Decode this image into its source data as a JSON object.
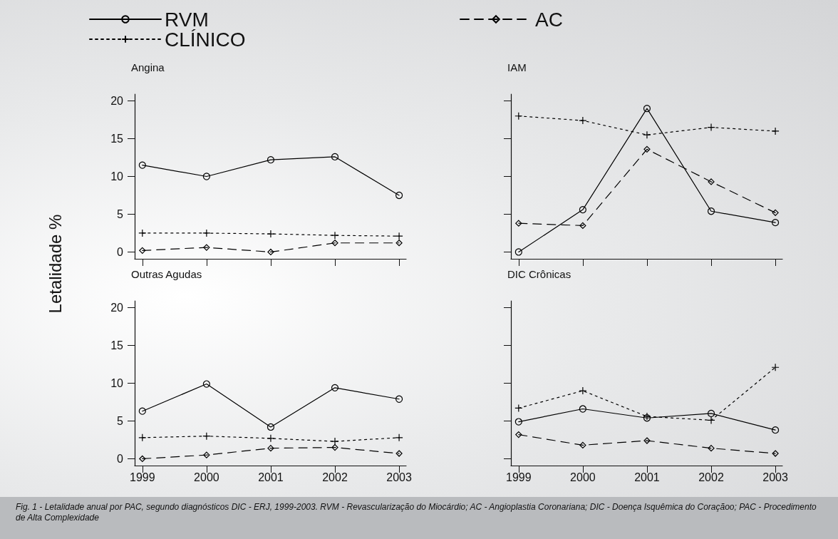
{
  "chart_data": [
    {
      "type": "line",
      "title": "Angina",
      "ylabel": "Letalidade %",
      "legend": "top right",
      "annotations": [
        "Fig. 1 - Letalidade anual por PAC, segundo diagnósticos DIC - ERJ, 1999-2003. RVM - Revascularização do Miocárdio; AC - Angioplastia Coronariana; DIC - Doença Isquêmica do Coraçãoo; PAC - Procedimento de Alta Complexidade"
      ],
      "x": [
        1999,
        2000,
        2001,
        2002,
        2003
      ],
      "xlim": [
        1998.88,
        2003.11
      ],
      "xticks": [
        1999,
        2000,
        2001,
        2002,
        2003
      ],
      "ylim": [
        -0.9,
        20.9
      ],
      "yticks": [
        0,
        5,
        10,
        15,
        20
      ],
      "tick_labels": "y",
      "grid": false,
      "series": [
        {
          "name": "RVM",
          "color": "#000000",
          "marker": "circle",
          "line_style": "solid",
          "values": [
            11.5,
            10.0,
            12.2,
            12.6,
            7.5
          ]
        },
        {
          "name": "CLÍNICO",
          "color": "#000000",
          "marker": "cross",
          "line_style": "dotted",
          "values": [
            2.5,
            2.5,
            2.4,
            2.2,
            2.1
          ]
        },
        {
          "name": "AC",
          "color": "#000000",
          "marker": "diamond",
          "line_style": "dashed",
          "values": [
            0.2,
            0.6,
            0.0,
            1.2,
            1.2
          ]
        }
      ]
    },
    {
      "type": "line",
      "title": "IAM",
      "x": [
        1999,
        2000,
        2001,
        2002,
        2003
      ],
      "xlim": [
        1998.88,
        2003.11
      ],
      "xticks": [
        1999,
        2000,
        2001,
        2002,
        2003
      ],
      "ylim": [
        -0.9,
        20.9
      ],
      "yticks": [
        0,
        5,
        10,
        15,
        20
      ],
      "tick_labels": false,
      "grid": false,
      "series": [
        {
          "name": "RVM",
          "color": "#000000",
          "marker": "circle",
          "line_style": "solid",
          "values": [
            0.0,
            5.6,
            19.0,
            5.4,
            3.9
          ]
        },
        {
          "name": "CLÍNICO",
          "color": "#000000",
          "marker": "cross",
          "line_style": "dotted",
          "values": [
            18.0,
            17.4,
            15.5,
            16.5,
            16.0
          ]
        },
        {
          "name": "AC",
          "color": "#000000",
          "marker": "diamond",
          "line_style": "dashed",
          "values": [
            3.8,
            3.5,
            13.6,
            9.3,
            5.2
          ]
        }
      ]
    },
    {
      "type": "line",
      "title": "Outras Agudas",
      "x": [
        1999,
        2000,
        2001,
        2002,
        2003
      ],
      "xlim": [
        1998.88,
        2003.11
      ],
      "xticks": [
        1999,
        2000,
        2001,
        2002,
        2003
      ],
      "ylim": [
        -0.9,
        20.9
      ],
      "yticks": [
        0,
        5,
        10,
        15,
        20
      ],
      "grid": false,
      "series": [
        {
          "name": "RVM",
          "color": "#000000",
          "marker": "circle",
          "line_style": "solid",
          "values": [
            6.3,
            9.9,
            4.2,
            9.4,
            7.9
          ]
        },
        {
          "name": "CLÍNICO",
          "color": "#000000",
          "marker": "cross",
          "line_style": "dotted",
          "values": [
            2.8,
            3.0,
            2.7,
            2.3,
            2.8
          ]
        },
        {
          "name": "AC",
          "color": "#000000",
          "marker": "diamond",
          "line_style": "dashed",
          "values": [
            0.0,
            0.5,
            1.4,
            1.5,
            0.7
          ]
        }
      ]
    },
    {
      "type": "line",
      "title": "DIC Crônicas",
      "x": [
        1999,
        2000,
        2001,
        2002,
        2003
      ],
      "xlim": [
        1998.88,
        2003.11
      ],
      "xticks": [
        1999,
        2000,
        2001,
        2002,
        2003
      ],
      "ylim": [
        -0.9,
        20.9
      ],
      "yticks": [
        0,
        5,
        10,
        15,
        20
      ],
      "tick_labels": "x",
      "grid": false,
      "series": [
        {
          "name": "RVM",
          "color": "#000000",
          "marker": "circle",
          "line_style": "solid",
          "values": [
            4.9,
            6.6,
            5.4,
            6.0,
            3.8
          ]
        },
        {
          "name": "CLÍNICO",
          "color": "#000000",
          "marker": "cross",
          "line_style": "dotted",
          "values": [
            6.7,
            9.0,
            5.6,
            5.1,
            12.1
          ]
        },
        {
          "name": "AC",
          "color": "#000000",
          "marker": "diamond",
          "line_style": "dashed",
          "values": [
            3.2,
            1.8,
            2.4,
            1.4,
            0.7
          ]
        }
      ]
    }
  ]
}
